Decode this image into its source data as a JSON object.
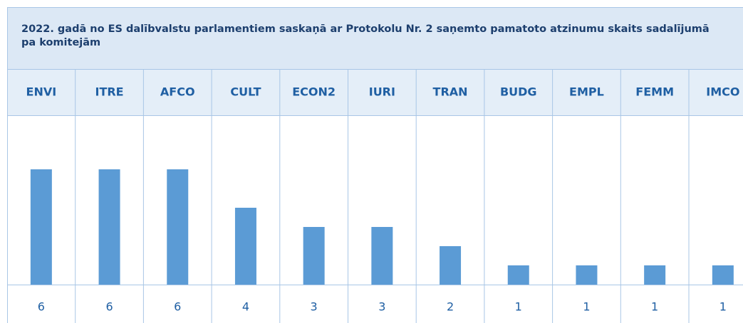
{
  "chart_data": {
    "type": "bar",
    "title": "2022. gadā no ES dalībvalstu parlamentiem saskaņā ar Protokolu Nr. 2 saņemto pamatoto atzinumu skaits sadalījumā pa komitejām",
    "categories": [
      "ENVI",
      "ITRE",
      "AFCO",
      "CULT",
      "ECON2",
      "IURI",
      "TRAN",
      "BUDG",
      "EMPL",
      "FEMM",
      "IMCO"
    ],
    "values": [
      6,
      6,
      6,
      4,
      3,
      3,
      2,
      1,
      1,
      1,
      1
    ],
    "color": "#5b9bd5"
  }
}
